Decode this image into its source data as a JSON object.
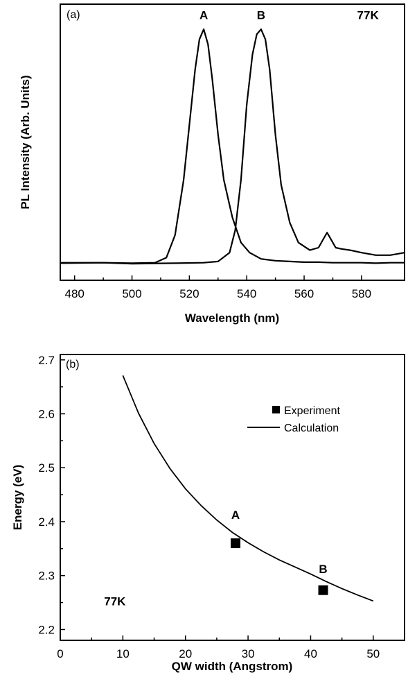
{
  "chart_data": [
    {
      "type": "line",
      "panel_label": "(a)",
      "xlabel": "Wavelength (nm)",
      "ylabel": "PL Intensity (Arb. Units)",
      "xlim": [
        475,
        595
      ],
      "ylim": [
        0,
        1.1
      ],
      "xticks": [
        480,
        500,
        520,
        540,
        560,
        580
      ],
      "yticks_shown": false,
      "annotations": [
        {
          "text": "A",
          "x": 525,
          "y": 1.04
        },
        {
          "text": "B",
          "x": 545,
          "y": 1.04
        },
        {
          "text": "77K",
          "x": 586,
          "y": 1.04
        }
      ],
      "series": [
        {
          "x": [
            475,
            490,
            500,
            508,
            512,
            515,
            518,
            520,
            522,
            523.5,
            525,
            526.5,
            528,
            530,
            532,
            535,
            538,
            541,
            545,
            550,
            555,
            560,
            565,
            570,
            575,
            580,
            585,
            590,
            595
          ],
          "y": [
            0.07,
            0.07,
            0.068,
            0.07,
            0.09,
            0.18,
            0.4,
            0.62,
            0.84,
            0.96,
            1.0,
            0.94,
            0.8,
            0.58,
            0.4,
            0.25,
            0.15,
            0.11,
            0.085,
            0.078,
            0.075,
            0.072,
            0.072,
            0.07,
            0.07,
            0.07,
            0.068,
            0.07,
            0.07
          ]
        },
        {
          "x": [
            475,
            490,
            500,
            515,
            525,
            530,
            534,
            536,
            538,
            540,
            542,
            543.5,
            545,
            546.5,
            548,
            550,
            552,
            555,
            558,
            562,
            565,
            567,
            568,
            569.5,
            571,
            573,
            576,
            580,
            585,
            590,
            595
          ],
          "y": [
            0.068,
            0.07,
            0.066,
            0.068,
            0.07,
            0.075,
            0.11,
            0.2,
            0.4,
            0.7,
            0.9,
            0.98,
            1.0,
            0.96,
            0.84,
            0.58,
            0.38,
            0.23,
            0.15,
            0.12,
            0.13,
            0.17,
            0.19,
            0.16,
            0.13,
            0.125,
            0.12,
            0.11,
            0.1,
            0.1,
            0.11
          ]
        }
      ]
    },
    {
      "type": "scatter",
      "panel_label": "(b)",
      "xlabel": "QW width (Angstrom)",
      "ylabel": "Energy (eV)",
      "xlim": [
        0,
        55
      ],
      "ylim": [
        2.18,
        2.71
      ],
      "xticks": [
        0,
        10,
        20,
        30,
        40,
        50
      ],
      "yticks": [
        2.2,
        2.3,
        2.4,
        2.5,
        2.6,
        2.7
      ],
      "legend": [
        {
          "label": "Experiment",
          "marker": "square"
        },
        {
          "label": "Calculation",
          "marker": "line"
        }
      ],
      "legend_position": "top-right",
      "annotations": [
        {
          "text": "A",
          "x": 28,
          "y": 2.405
        },
        {
          "text": "B",
          "x": 42,
          "y": 2.305
        },
        {
          "text": "77K",
          "x": 7,
          "y": 2.245
        }
      ],
      "experiment": {
        "x": [
          28,
          42
        ],
        "y": [
          2.36,
          2.273
        ],
        "point_labels": [
          "A",
          "B"
        ]
      },
      "calculation": {
        "x": [
          10,
          12.5,
          15,
          17.5,
          20,
          22.5,
          25,
          27.5,
          30,
          32.5,
          35,
          37.5,
          40,
          42.5,
          45,
          47.5,
          50
        ],
        "y": [
          2.671,
          2.601,
          2.545,
          2.499,
          2.461,
          2.43,
          2.403,
          2.38,
          2.361,
          2.344,
          2.329,
          2.316,
          2.303,
          2.289,
          2.276,
          2.264,
          2.253
        ]
      }
    }
  ]
}
